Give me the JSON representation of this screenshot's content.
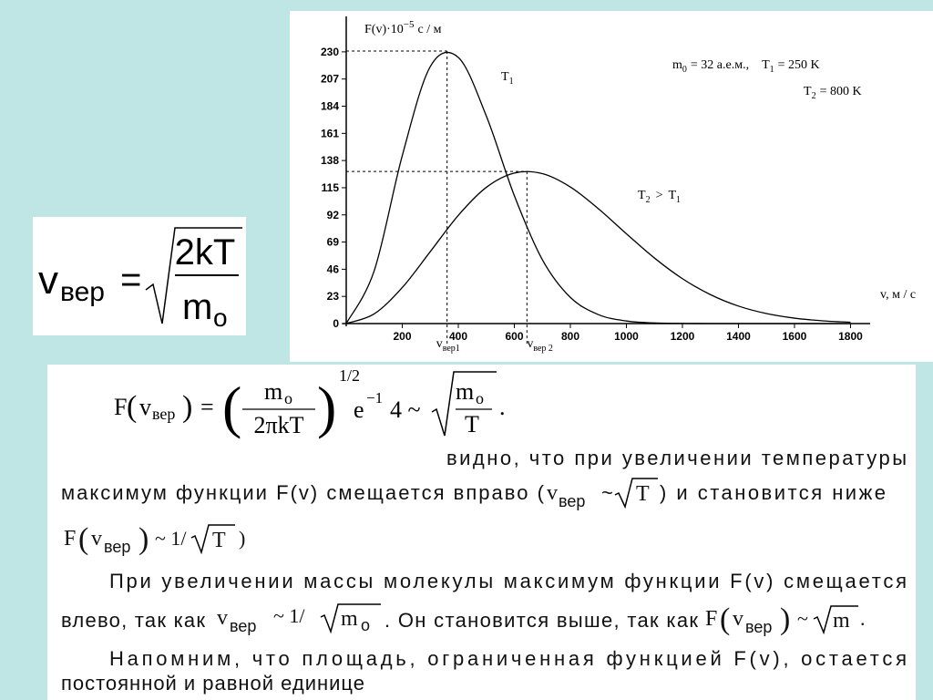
{
  "chart_data": {
    "type": "line",
    "y_label": {
      "main": "F(v)·10",
      "sup": "−5",
      "unit": "с / м"
    },
    "x_label": "v, м / с",
    "x": [
      0,
      100,
      200,
      300,
      400,
      500,
      600,
      700,
      800,
      900,
      1000,
      1100,
      1200,
      1300,
      1400,
      1500,
      1600,
      1700,
      1800
    ],
    "series": [
      {
        "label": {
          "symbol": "T",
          "sub": "1"
        },
        "color": "#000000",
        "values": [
          0,
          44.8,
          142.1,
          217.5,
          225.3,
          175.7,
          108.3,
          54.1,
          22.2,
          7.57,
          2.16,
          0.52,
          0.1,
          0.02,
          0,
          0,
          0,
          0,
          0
        ]
      },
      {
        "label": {
          "symbol": "T",
          "sub": "2",
          "rel": ">",
          "symbol2": "T",
          "sub2": "1"
        },
        "color": "#000000",
        "values": [
          0,
          8.21,
          30.5,
          60.9,
          91.6,
          115.3,
          127.4,
          126.9,
          115.6,
          97.2,
          76.0,
          55.5,
          38.0,
          24.5,
          14.8,
          8.48,
          4.58,
          2.34,
          1.13
        ]
      }
    ],
    "peaks": [
      {
        "x": 360,
        "y": 230.7,
        "symbol": "v",
        "sub": "вер1"
      },
      {
        "x": 645,
        "y": 128.7,
        "symbol": "v",
        "sub": "вер 2"
      }
    ],
    "params": {
      "m": "m",
      "m_sub": "0",
      "m_rest": "= 32  а.е.м.,",
      "t1": "T",
      "t1_sub": "1",
      "t1_rest": "= 250  K",
      "t2": "T",
      "t2_sub": "2",
      "t2_rest": "= 800  K"
    },
    "xlim": [
      0,
      1870
    ],
    "ylim": [
      0,
      260
    ],
    "xticks": [
      200,
      400,
      600,
      800,
      1000,
      1200,
      1400,
      1600,
      1800
    ],
    "yticks": [
      0,
      23,
      46,
      69,
      92,
      115,
      138,
      161,
      184,
      207,
      230
    ],
    "grid": false
  },
  "formula_box": {
    "v": "v",
    "sub": "вер",
    "eq": "=",
    "num": "2kT",
    "den": "m",
    "den_sub": "o"
  },
  "text": {
    "formula": {
      "f": "F",
      "lp": "(",
      "v": "v",
      "sub": "вер",
      "rp": ")",
      "eq": "=",
      "num": "m",
      "num_sub": "o",
      "den": "2πkT",
      "power": "1/2",
      "e": "e",
      "e_power": "−1",
      "factor": "4 ~",
      "sqrt_num": "m",
      "sqrt_num_sub": "o",
      "sqrt_den": "T",
      "end": "."
    },
    "line1": "видно, что при увеличении температуры",
    "line2": {
      "a": "максимум функции F(v) смещается вправо (",
      "v": "v",
      "sub": "вер",
      "tilde": "~",
      "sqrt": "T",
      "b": ") и становится ниже"
    },
    "line3": {
      "f": "F",
      "lp": "(",
      "v": "v",
      "sub": "вер",
      "rp": ")",
      "rest": "~ 1/",
      "sqrt": "T",
      "end": ")"
    },
    "line4": "При увеличении массы молекулы максимум функции F(v) смещается",
    "line5": {
      "a": "влево, так как",
      "v": "v",
      "sub": "вер",
      "b": "~  1/",
      "sqrt": "m",
      "sqrt_sub": "o",
      "c": ". Он становится выше, так как",
      "f": "F",
      "lp": "(",
      "v2": "v",
      "sub2": "вер",
      "rp": ")",
      "d": "~",
      "sqrt2": "m",
      "e": "."
    },
    "line6": "Напомним, что площадь, ограниченная функцией F(v), остается",
    "line7": "постоянной и равной единице"
  }
}
